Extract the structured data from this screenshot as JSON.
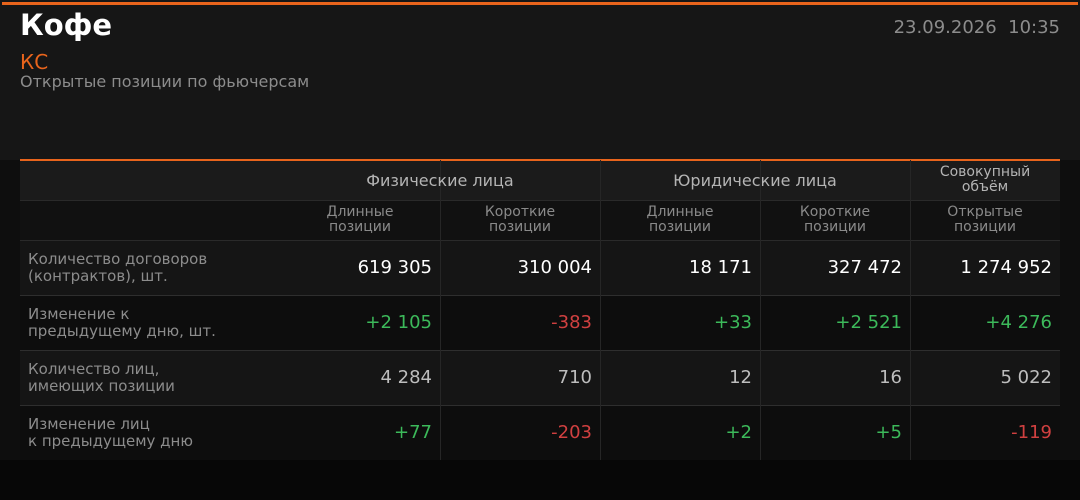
{
  "header": {
    "title": "Кофе",
    "ticker": "КС",
    "subtitle": "Открытые позиции по фьючерсам",
    "date": "23.09.2026",
    "time": "10:35"
  },
  "table": {
    "groups": [
      [
        "Физические лица"
      ],
      [
        "Юридические лица"
      ],
      [
        "Совокупный",
        "объём"
      ]
    ],
    "subheaders": [
      [
        "Длинные",
        "позиции"
      ],
      [
        "Короткие",
        "позиции"
      ],
      [
        "Длинные",
        "позиции"
      ],
      [
        "Короткие",
        "позиции"
      ],
      [
        "Открытые",
        "позиции"
      ]
    ],
    "rows": [
      {
        "label": [
          "Количество договоров",
          "(контрактов), шт."
        ],
        "cells": [
          "619 305",
          "310 004",
          "18 171",
          "327 472",
          "1 274 952"
        ]
      },
      {
        "label": [
          "Изменение к",
          "предыдущему дню, шт."
        ],
        "cells": [
          "+2 105",
          "-383",
          "+33",
          "+2 521",
          "+4 276"
        ]
      },
      {
        "label": [
          "Количество лиц,",
          "имеющих позиции"
        ],
        "cells": [
          "4 284",
          "710",
          "12",
          "16",
          "5 022"
        ]
      },
      {
        "label": [
          "Изменение лиц",
          "к предыдущему дню"
        ],
        "cells": [
          "+77",
          "-203",
          "+2",
          "+5",
          "-119"
        ]
      }
    ]
  }
}
